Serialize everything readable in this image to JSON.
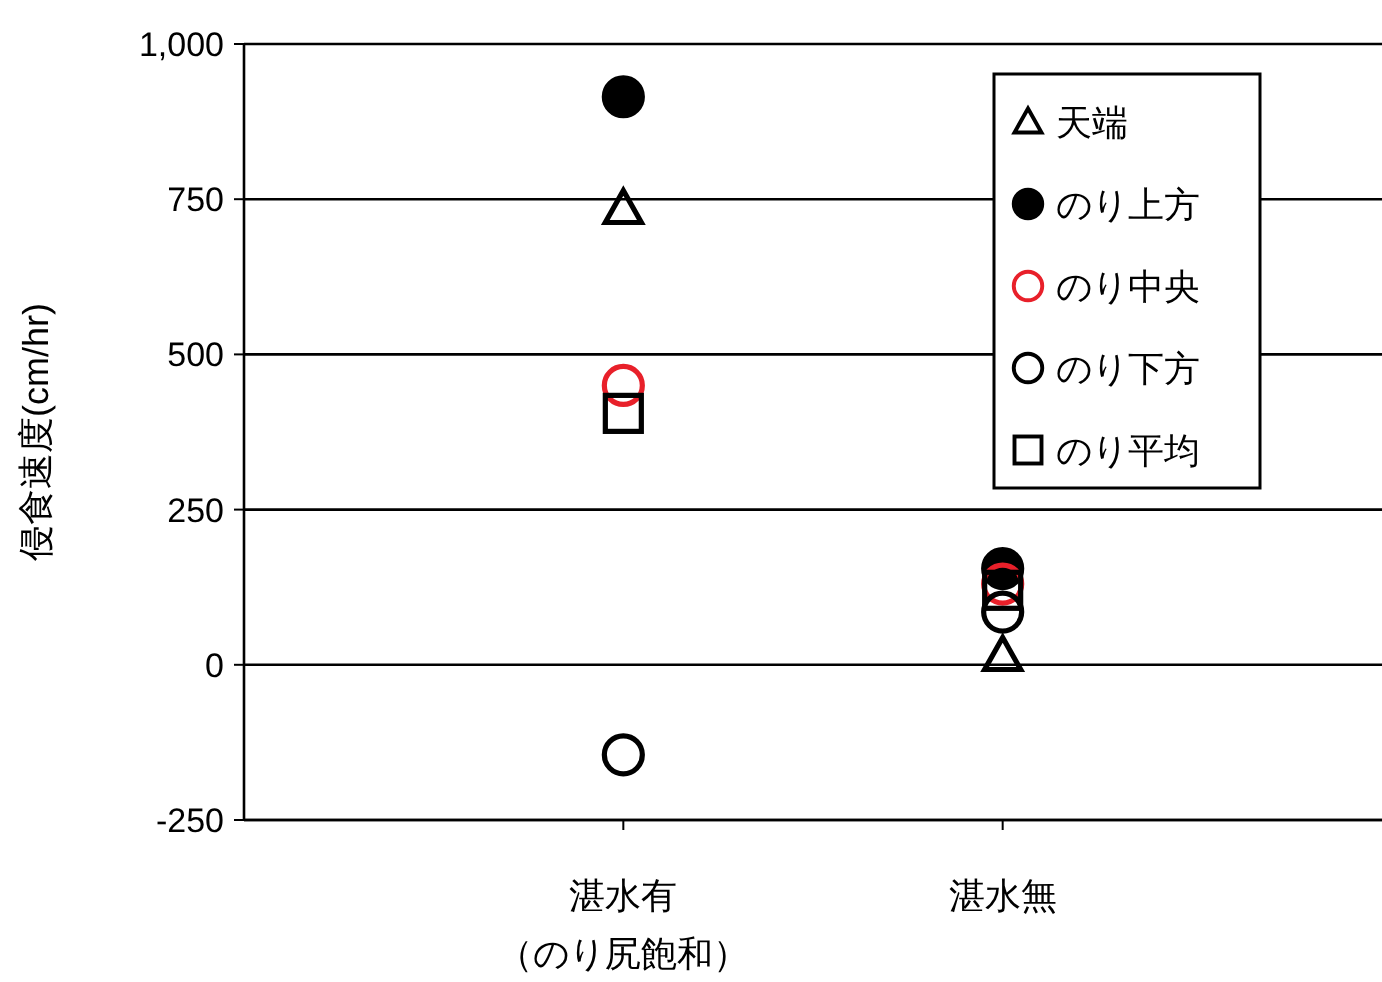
{
  "chart_data": {
    "type": "scatter",
    "ylabel": "侵食速度(cm/hr)",
    "categories": [
      "湛水有（のり尻飽和）",
      "湛水無"
    ],
    "ylim": [
      -250,
      1000
    ],
    "yticks": [
      -250,
      0,
      250,
      500,
      750,
      {
        "value": 1000,
        "label": "1,000"
      }
    ],
    "grid": "y",
    "legend": "top right",
    "series": [
      {
        "name": "天端",
        "color": "#000000",
        "marker": "triangle",
        "values": [
          735,
          15
        ]
      },
      {
        "name": "のり上方",
        "color": "#000000",
        "marker": "filled-circle",
        "values": [
          915,
          155
        ]
      },
      {
        "name": "のり中央",
        "color": "#e8202a",
        "marker": "circle",
        "values": [
          450,
          130
        ]
      },
      {
        "name": "のり下方",
        "color": "#000000",
        "marker": "circle",
        "values": [
          -145,
          85
        ]
      },
      {
        "name": "のり平均",
        "color": "#000000",
        "marker": "square",
        "values": [
          405,
          120
        ]
      }
    ]
  }
}
